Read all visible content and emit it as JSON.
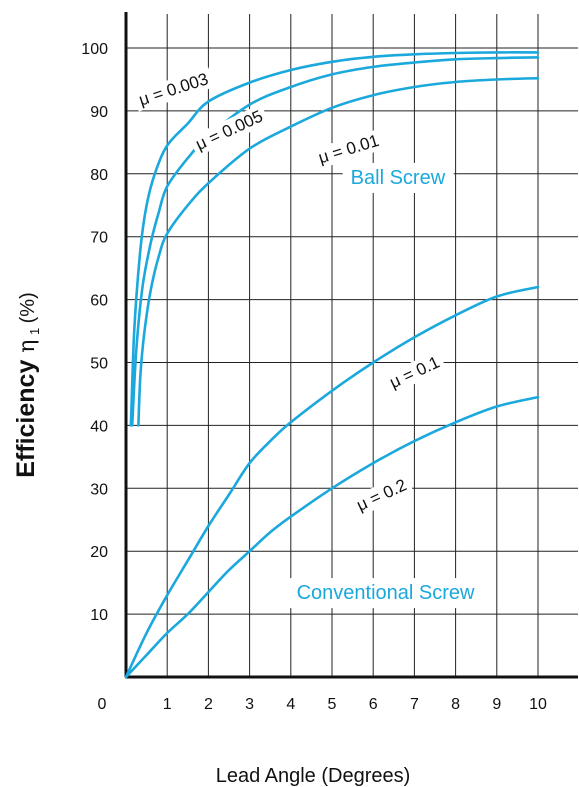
{
  "chart_data": {
    "type": "line",
    "title": "",
    "xlabel": "Lead Angle (Degrees)",
    "ylabel": "Efficiency η₁(%)",
    "ylabel_parts": {
      "main": "Efficiency ",
      "symbol": "η",
      "subscript": "1",
      "unit": "(%)"
    },
    "xlim": [
      0,
      11
    ],
    "ylim": [
      0,
      105
    ],
    "xticks": [
      1,
      2,
      3,
      4,
      5,
      6,
      7,
      8,
      9,
      10
    ],
    "yticks": [
      10,
      20,
      30,
      40,
      50,
      60,
      70,
      80,
      90,
      100
    ],
    "origin_label": "0",
    "grid": true,
    "line_color": "#1ba8dd",
    "region_labels": [
      {
        "text": "Ball Screw",
        "x": 6.6,
        "y": 79.5
      },
      {
        "text": "Conventional Screw",
        "x": 6.3,
        "y": 13.5
      }
    ],
    "series": [
      {
        "name": "μ = 0.003",
        "x": [
          0.12,
          0.2,
          0.35,
          0.5,
          0.7,
          1.0,
          1.5,
          2.0,
          3.0,
          4.0,
          5.0,
          6.0,
          7.0,
          8.0,
          9.0,
          10.0
        ],
        "y": [
          40,
          55,
          68,
          75,
          80,
          84.5,
          88,
          91.5,
          94.5,
          96.5,
          97.8,
          98.6,
          99.0,
          99.2,
          99.3,
          99.3
        ]
      },
      {
        "name": "μ = 0.005",
        "x": [
          0.15,
          0.25,
          0.4,
          0.6,
          0.8,
          1.0,
          1.5,
          2.0,
          3.0,
          4.0,
          5.0,
          6.0,
          7.0,
          8.0,
          9.0,
          10.0
        ],
        "y": [
          40,
          52,
          62,
          69,
          74,
          78,
          82.5,
          86,
          91,
          93.8,
          95.8,
          97,
          97.7,
          98.2,
          98.4,
          98.5
        ]
      },
      {
        "name": "μ = 0.01",
        "x": [
          0.3,
          0.35,
          0.45,
          0.6,
          0.8,
          1.0,
          1.5,
          2.0,
          3.0,
          4.0,
          5.0,
          6.0,
          7.0,
          8.0,
          9.0,
          10.0
        ],
        "y": [
          40,
          48,
          55,
          61.5,
          67,
          70.5,
          75,
          78.5,
          84,
          87.5,
          90.5,
          92.5,
          93.8,
          94.6,
          95,
          95.2
        ]
      },
      {
        "name": "μ = 0.1",
        "x": [
          0.0,
          0.5,
          1.0,
          1.5,
          2.0,
          2.5,
          3.0,
          3.5,
          4.0,
          5.0,
          6.0,
          7.0,
          8.0,
          9.0,
          10.0
        ],
        "y": [
          0,
          7,
          13,
          18.5,
          24,
          29,
          34,
          37.5,
          40.5,
          45.5,
          50,
          54,
          57.5,
          60.5,
          62
        ]
      },
      {
        "name": "μ = 0.2",
        "x": [
          0.0,
          0.5,
          1.0,
          1.5,
          2.0,
          2.5,
          3.0,
          3.5,
          4.0,
          5.0,
          6.0,
          7.0,
          8.0,
          9.0,
          10.0
        ],
        "y": [
          0,
          3.5,
          7,
          10,
          13.5,
          17,
          20,
          23,
          25.5,
          30,
          34,
          37.5,
          40.5,
          43,
          44.5
        ]
      }
    ],
    "curve_labels": [
      {
        "series": 0,
        "text": "μ = 0.003",
        "x": 1.15,
        "y": 93.5,
        "angle": -18
      },
      {
        "series": 1,
        "text": "μ = 0.005",
        "x": 2.5,
        "y": 87,
        "angle": -25
      },
      {
        "series": 2,
        "text": "μ = 0.01",
        "x": 5.4,
        "y": 84,
        "angle": -17
      },
      {
        "series": 3,
        "text": "μ = 0.1",
        "x": 7.0,
        "y": 48.5,
        "angle": -25
      },
      {
        "series": 4,
        "text": "μ = 0.2",
        "x": 6.2,
        "y": 29,
        "angle": -25
      }
    ]
  }
}
